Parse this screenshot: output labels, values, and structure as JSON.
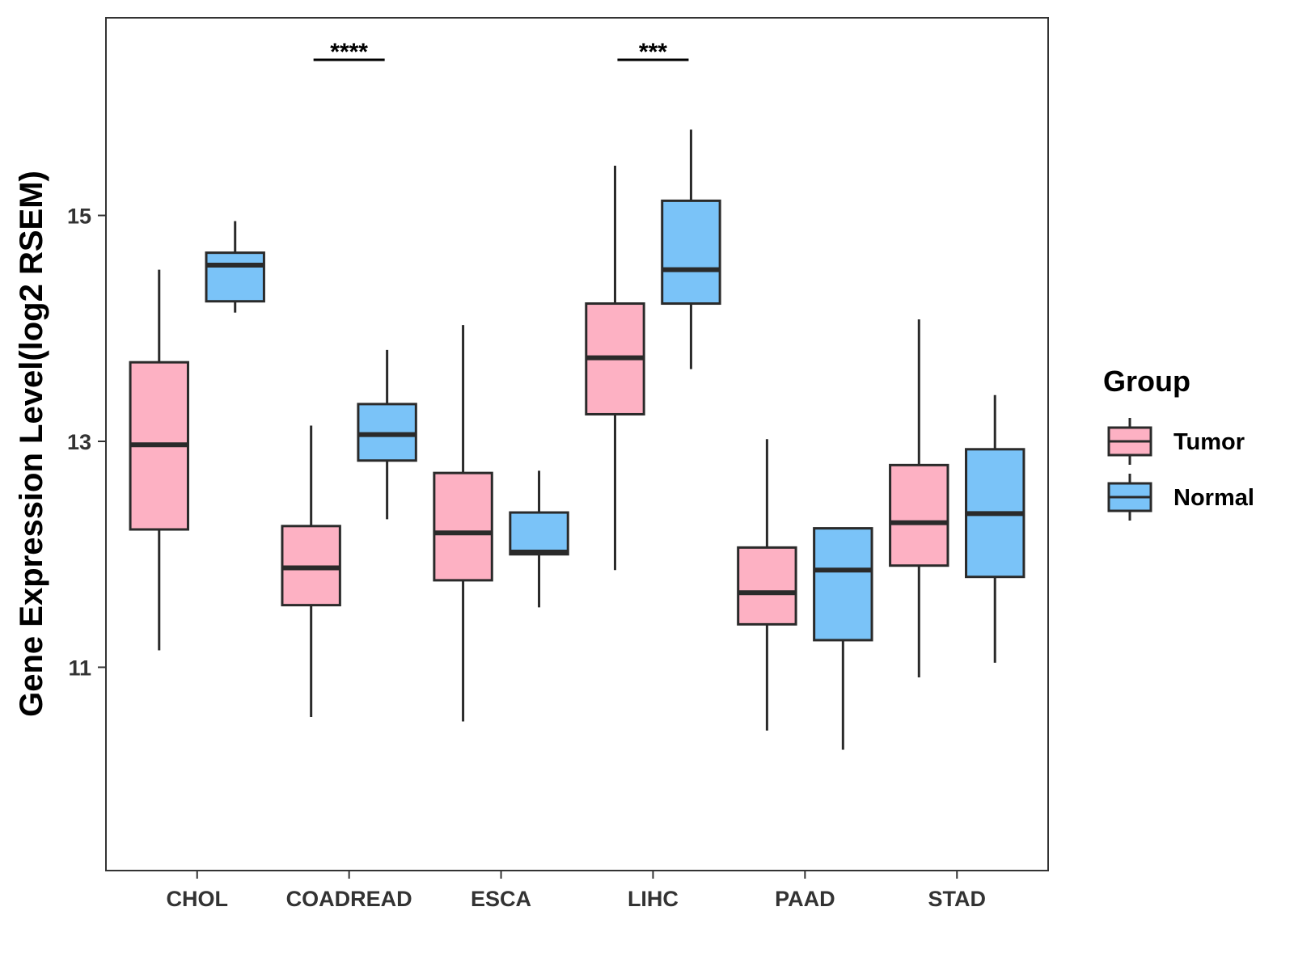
{
  "chart_data": {
    "type": "boxplot",
    "title": "",
    "xlabel": "",
    "ylabel": "Gene Expression Level(log2 RSEM)",
    "ylim": [
      9.2,
      16.75
    ],
    "yticks": [
      11,
      13,
      15
    ],
    "grid": false,
    "legend": {
      "title": "Group",
      "position": "right",
      "entries": [
        "Tumor",
        "Normal"
      ]
    },
    "colors": {
      "Tumor": "#FDB1C3",
      "Normal": "#7AC3F8",
      "stroke": "#2A2A2A"
    },
    "categories": [
      "CHOL",
      "COADREAD",
      "ESCA",
      "LIHC",
      "PAAD",
      "STAD"
    ],
    "series": [
      {
        "name": "Tumor",
        "boxes": [
          {
            "min": 11.15,
            "q1": 12.22,
            "median": 12.97,
            "q3": 13.7,
            "max": 14.52
          },
          {
            "min": 10.56,
            "q1": 11.55,
            "median": 11.88,
            "q3": 12.25,
            "max": 13.14
          },
          {
            "min": 10.52,
            "q1": 11.77,
            "median": 12.19,
            "q3": 12.72,
            "max": 14.03
          },
          {
            "min": 11.86,
            "q1": 13.24,
            "median": 13.74,
            "q3": 14.22,
            "max": 15.44
          },
          {
            "min": 10.44,
            "q1": 11.38,
            "median": 11.66,
            "q3": 12.06,
            "max": 13.02
          },
          {
            "min": 10.91,
            "q1": 11.9,
            "median": 12.28,
            "q3": 12.79,
            "max": 14.08
          }
        ]
      },
      {
        "name": "Normal",
        "boxes": [
          {
            "min": 14.14,
            "q1": 14.24,
            "median": 14.56,
            "q3": 14.67,
            "max": 14.95
          },
          {
            "min": 12.31,
            "q1": 12.83,
            "median": 13.06,
            "q3": 13.33,
            "max": 13.81
          },
          {
            "min": 11.53,
            "q1": 12.0,
            "median": 12.02,
            "q3": 12.37,
            "max": 12.74
          },
          {
            "min": 13.64,
            "q1": 14.22,
            "median": 14.52,
            "q3": 15.13,
            "max": 15.76
          },
          {
            "min": 10.27,
            "q1": 11.24,
            "median": 11.86,
            "q3": 12.23,
            "max": 12.23
          },
          {
            "min": 11.04,
            "q1": 11.8,
            "median": 12.36,
            "q3": 12.93,
            "max": 13.41
          }
        ]
      }
    ],
    "annotations": [
      {
        "category": "COADREAD",
        "label": "****"
      },
      {
        "category": "LIHC",
        "label": "***"
      }
    ]
  }
}
